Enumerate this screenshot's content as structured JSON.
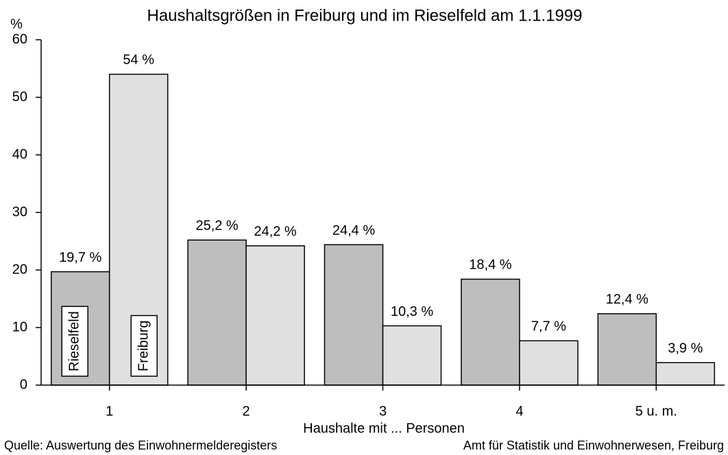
{
  "chart_data": {
    "type": "bar",
    "title": "Haushaltsgrößen in Freiburg und im Rieselfeld am 1.1.1999",
    "y_label": "%",
    "x_label": "Haushalte mit ... Personen",
    "source": "Quelle: Auswertung des Einwohnermelderegisters",
    "publisher": "Amt für Statistik und Einwohnerwesen, Freiburg",
    "categories": [
      "1",
      "2",
      "3",
      "4",
      "5 u. m."
    ],
    "series": [
      {
        "name": "Rieselfeld",
        "color": "#bebebe",
        "values": [
          19.7,
          25.2,
          24.4,
          18.4,
          12.4
        ],
        "value_labels": [
          "19,7 %",
          "25,2 %",
          "24,4 %",
          "18,4 %",
          "12,4 %"
        ]
      },
      {
        "name": "Freiburg",
        "color": "#e0e0e0",
        "values": [
          54,
          24.2,
          10.3,
          7.7,
          3.9
        ],
        "value_labels": [
          "54 %",
          "24,2 %",
          "10,3 %",
          "7,7 %",
          "3,9 %"
        ]
      }
    ],
    "ylim": [
      0,
      60
    ],
    "yticks": [
      0,
      10,
      20,
      30,
      40,
      50,
      60
    ]
  }
}
